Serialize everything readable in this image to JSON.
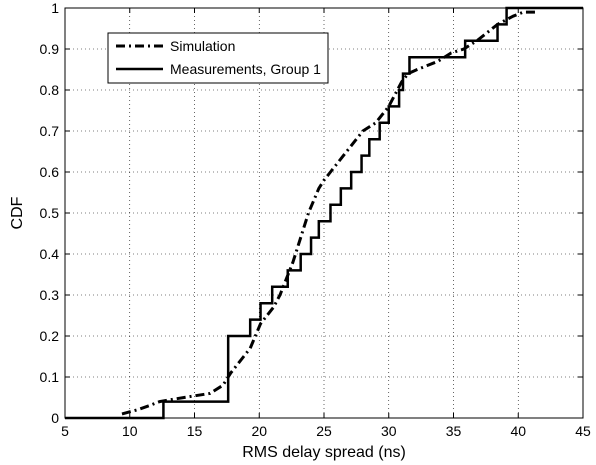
{
  "chart_data": {
    "type": "line",
    "title": "",
    "xlabel": "RMS delay spread (ns)",
    "ylabel": "CDF",
    "xlim": [
      5,
      45
    ],
    "ylim": [
      0,
      1
    ],
    "xticks": [
      "5",
      "10",
      "15",
      "20",
      "25",
      "30",
      "35",
      "40",
      "45"
    ],
    "yticks": [
      "0",
      "0.1",
      "0.2",
      "0.3",
      "0.4",
      "0.5",
      "0.6",
      "0.7",
      "0.8",
      "0.9",
      "1"
    ],
    "grid": true,
    "legend_position": "top-left",
    "series": [
      {
        "name": "Simulation",
        "style": "dash-dot",
        "x": [
          9.4,
          10.6,
          11.5,
          12.3,
          13.2,
          14.2,
          15.2,
          16.2,
          17.2,
          17.8,
          18.3,
          18.8,
          19.3,
          19.7,
          20.1,
          20.6,
          21.1,
          21.6,
          22.1,
          22.6,
          23.0,
          23.4,
          23.8,
          24.2,
          24.6,
          25.0,
          25.5,
          26.0,
          26.5,
          27.0,
          27.5,
          28.0,
          28.5,
          29.0,
          29.5,
          30.0,
          30.5,
          31.0,
          31.5,
          32.2,
          33.0,
          33.8,
          34.8,
          35.8,
          36.8,
          37.6,
          38.4,
          39.0,
          39.6,
          40.4,
          41.5
        ],
        "y": [
          0.01,
          0.02,
          0.03,
          0.04,
          0.045,
          0.05,
          0.055,
          0.06,
          0.08,
          0.11,
          0.13,
          0.15,
          0.17,
          0.2,
          0.23,
          0.25,
          0.27,
          0.3,
          0.34,
          0.38,
          0.42,
          0.46,
          0.5,
          0.53,
          0.56,
          0.58,
          0.6,
          0.62,
          0.64,
          0.66,
          0.68,
          0.7,
          0.71,
          0.72,
          0.74,
          0.76,
          0.79,
          0.82,
          0.84,
          0.85,
          0.86,
          0.87,
          0.89,
          0.9,
          0.92,
          0.94,
          0.96,
          0.97,
          0.98,
          0.99,
          0.99
        ]
      },
      {
        "name": "Measurements, Group 1",
        "style": "solid-step",
        "x": [
          12.6,
          17.6,
          18.2,
          19.3,
          20.1,
          21.0,
          22.2,
          23.2,
          24.0,
          24.6,
          25.5,
          26.3,
          27.1,
          27.9,
          28.5,
          29.3,
          30.0,
          30.8,
          31.1,
          31.6,
          35.9,
          38.4,
          39.1,
          39.3
        ],
        "y": [
          0.04,
          0.2,
          0.2,
          0.24,
          0.28,
          0.32,
          0.36,
          0.4,
          0.44,
          0.48,
          0.52,
          0.56,
          0.6,
          0.64,
          0.68,
          0.72,
          0.76,
          0.8,
          0.84,
          0.88,
          0.92,
          0.96,
          1.0,
          1.0
        ]
      }
    ]
  }
}
